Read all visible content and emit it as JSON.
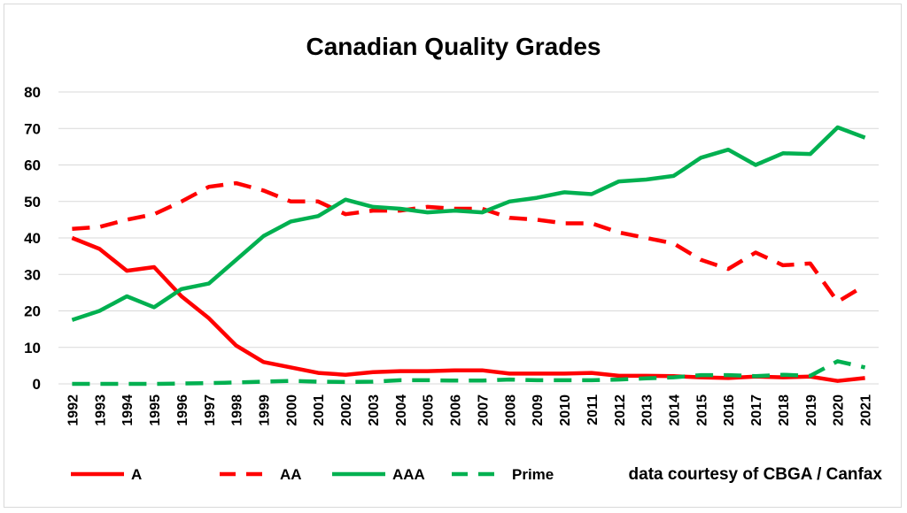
{
  "chart_data": {
    "type": "line",
    "title": "Canadian Quality Grades",
    "credit": "data courtesy of CBGA / Canfax",
    "x": [
      "1992",
      "1993",
      "1994",
      "1995",
      "1996",
      "1997",
      "1998",
      "1999",
      "2000",
      "2001",
      "2002",
      "2003",
      "2004",
      "2005",
      "2006",
      "2007",
      "2008",
      "2009",
      "2010",
      "2011",
      "2012",
      "2013",
      "2014",
      "2015",
      "2016",
      "2017",
      "2018",
      "2019",
      "2020",
      "2021"
    ],
    "ylim": [
      0,
      80
    ],
    "yticks": [
      "0",
      "10",
      "20",
      "30",
      "40",
      "50",
      "60",
      "70",
      "80"
    ],
    "grid": true,
    "legend_position": "bottom-left",
    "series": [
      {
        "name": "A",
        "color": "#ff0000",
        "dash": "solid",
        "values": [
          40,
          37,
          31,
          32,
          24,
          18,
          10.5,
          6,
          4.5,
          3,
          2.5,
          3.2,
          3.5,
          3.5,
          3.7,
          3.7,
          2.8,
          2.8,
          2.8,
          3,
          2.2,
          2.2,
          2.1,
          1.8,
          1.6,
          2,
          1.8,
          2,
          0.8,
          1.6
        ]
      },
      {
        "name": "AA",
        "color": "#ff0000",
        "dash": "dashed",
        "values": [
          42.5,
          43,
          45,
          46.5,
          50,
          54,
          55,
          53,
          50,
          50,
          46.5,
          47.5,
          47.5,
          48.5,
          48,
          48,
          45.5,
          45,
          44,
          44,
          41.5,
          40,
          38.5,
          34,
          31.5,
          36,
          32.5,
          33,
          22.5,
          27
        ]
      },
      {
        "name": "AAA",
        "color": "#00b050",
        "dash": "solid",
        "values": [
          17.5,
          20,
          24,
          21,
          26,
          27.5,
          34,
          40.5,
          44.5,
          46,
          50.5,
          48.5,
          48,
          47,
          47.5,
          47,
          50,
          51,
          52.5,
          52,
          55.5,
          56,
          57,
          62,
          64.2,
          60,
          63.2,
          63,
          70.3,
          67.5
        ]
      },
      {
        "name": "Prime",
        "color": "#00b050",
        "dash": "dashed",
        "values": [
          0,
          0,
          0,
          0,
          0.1,
          0.2,
          0.4,
          0.6,
          0.8,
          0.6,
          0.5,
          0.6,
          1,
          1,
          0.9,
          0.9,
          1.2,
          1,
          1,
          1,
          1.2,
          1.5,
          1.8,
          2.4,
          2.4,
          2.1,
          2.5,
          2.2,
          6.2,
          4.5
        ]
      }
    ]
  }
}
